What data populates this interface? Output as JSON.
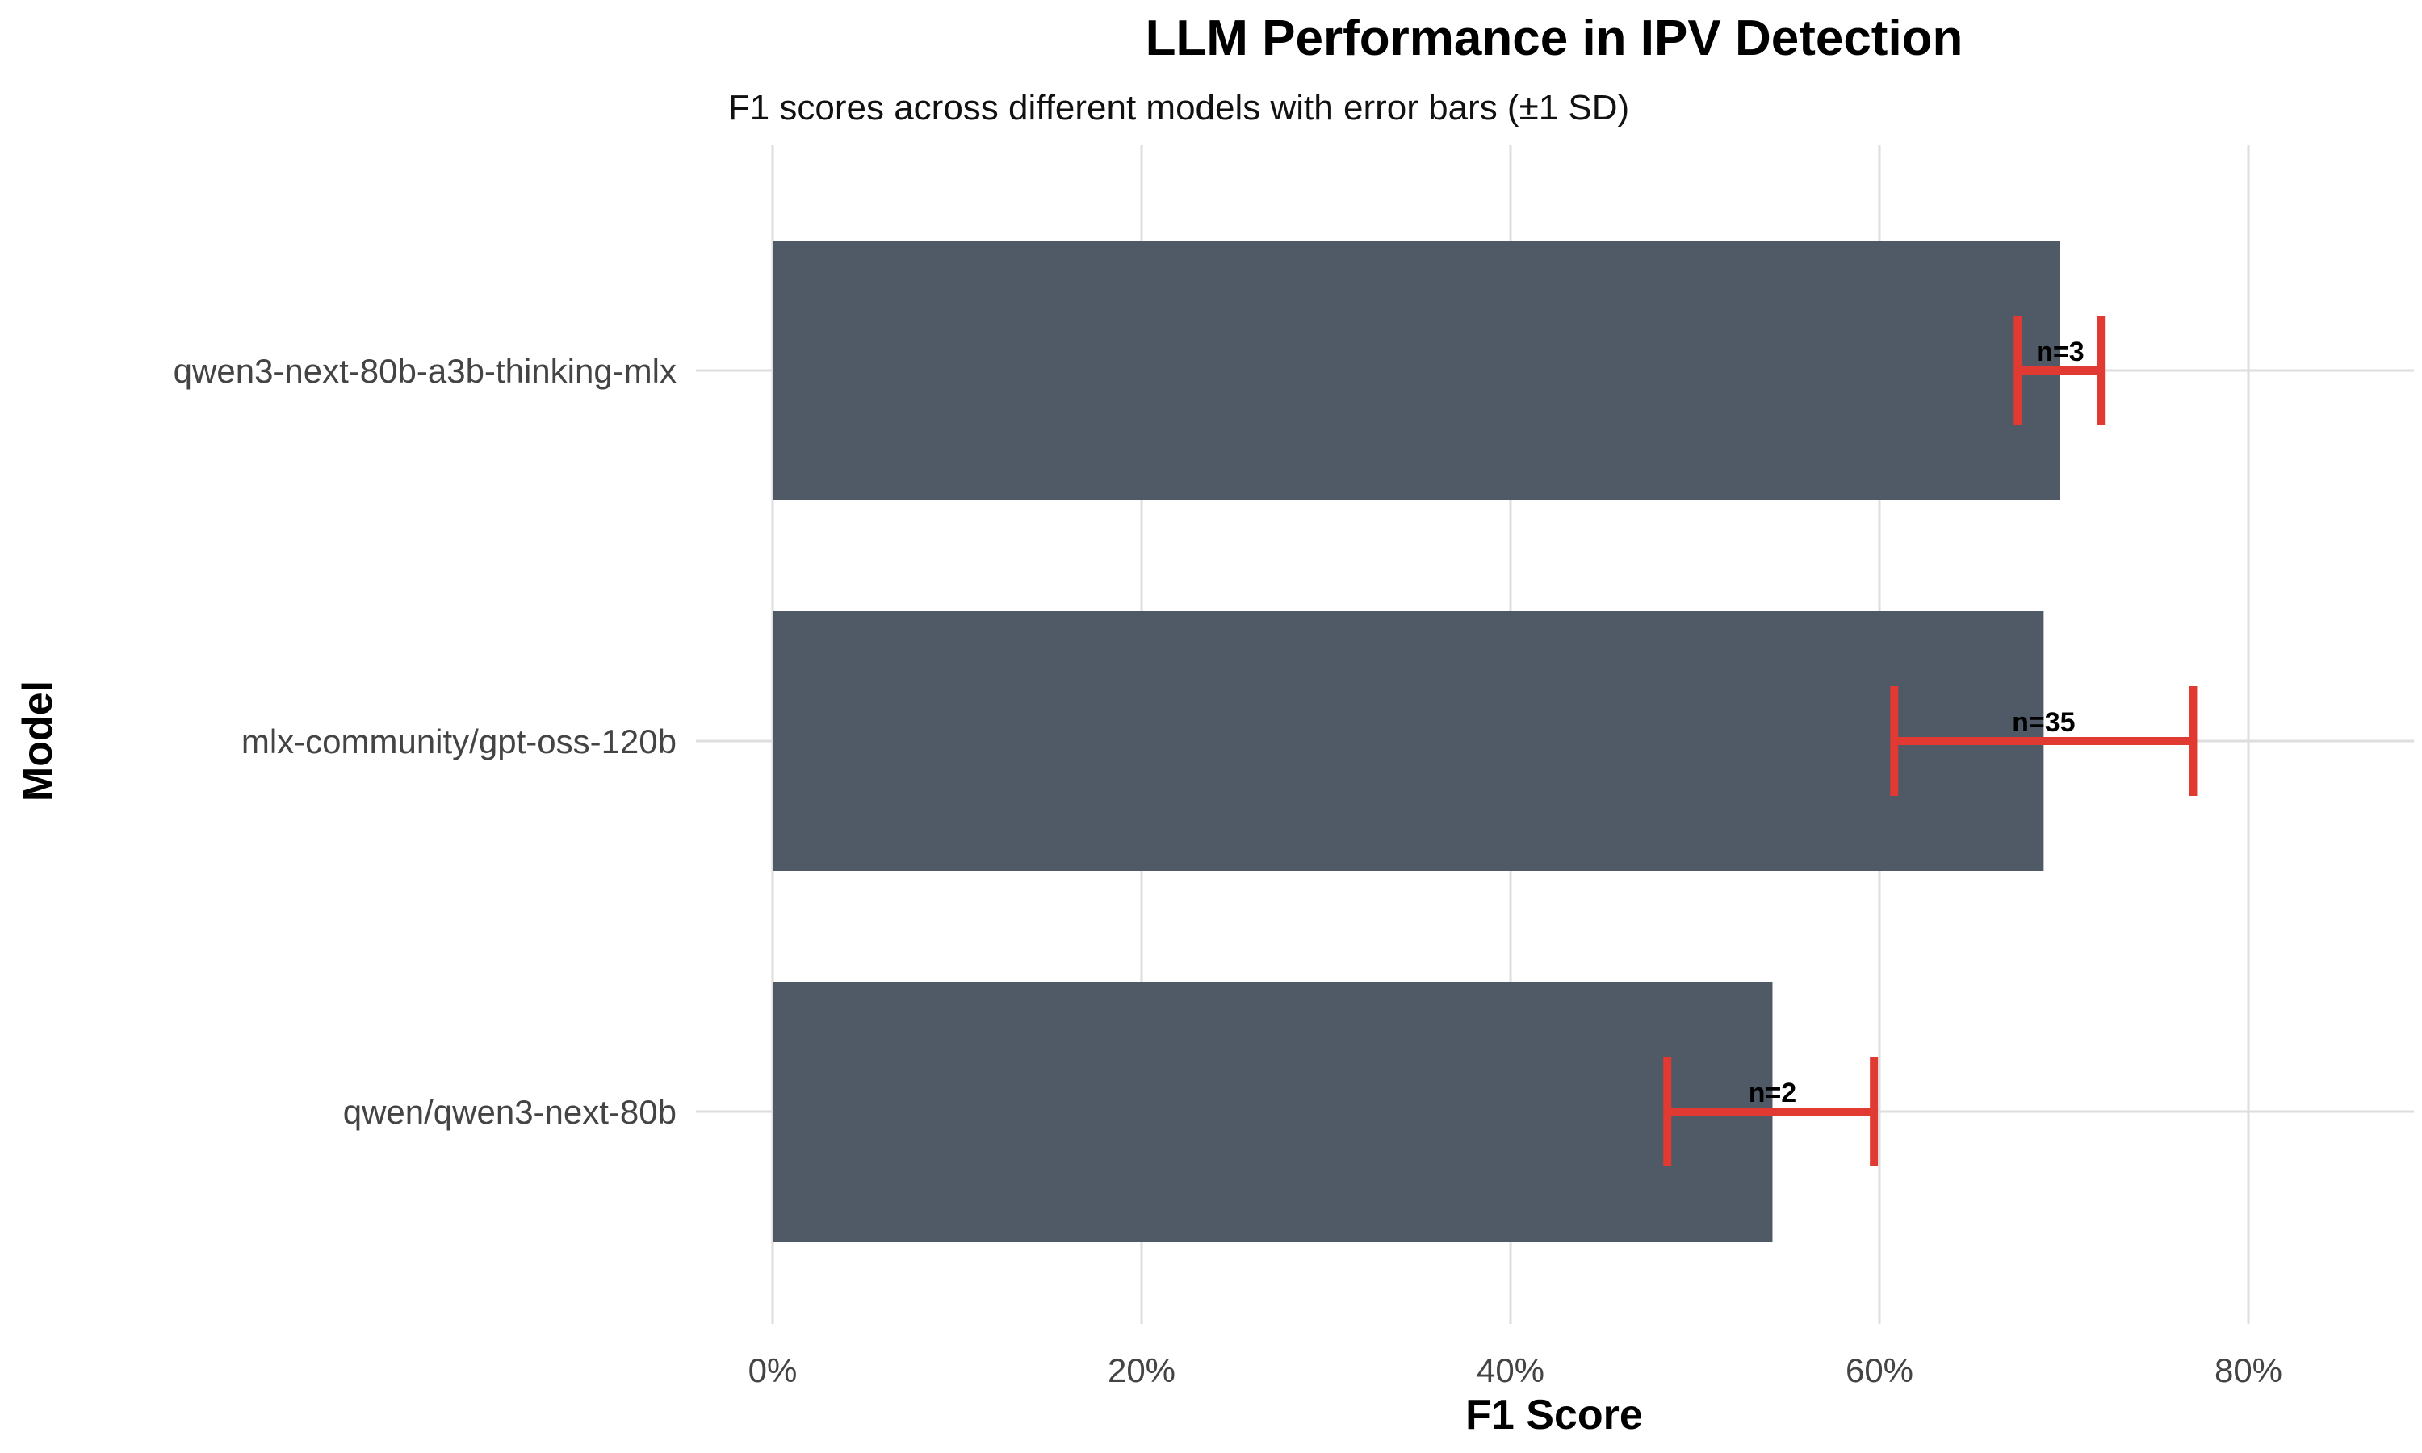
{
  "chart_data": {
    "type": "bar",
    "orientation": "horizontal",
    "title": "LLM Performance in IPV Detection",
    "subtitle": "F1 scores across different models with error bars (±1 SD)",
    "xlabel": "F1 Score",
    "ylabel": "Model",
    "xlim": [
      0,
      0.89
    ],
    "x_ticks": [
      0,
      0.2,
      0.4,
      0.6,
      0.8
    ],
    "x_tick_labels": [
      "0%",
      "20%",
      "40%",
      "60%",
      "80%"
    ],
    "grid": true,
    "categories": [
      "qwen3-next-80b-a3b-thinking-mlx",
      "mlx-community/gpt-oss-120b",
      "qwen/qwen3-next-80b"
    ],
    "values": [
      0.698,
      0.689,
      0.542
    ],
    "error_low": [
      0.675,
      0.608,
      0.485
    ],
    "error_high": [
      0.72,
      0.77,
      0.597
    ],
    "annotations": [
      "n=3",
      "n=35",
      "n=2"
    ],
    "colors": {
      "bar": "#4f5a66",
      "error_bar": "#e03a32",
      "grid": "#dedede"
    }
  }
}
